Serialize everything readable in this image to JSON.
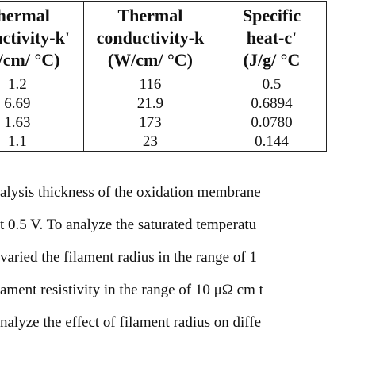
{
  "table": {
    "headers": [
      [
        "Thermal",
        "onductivity-k'",
        "(W/cm/ °C)"
      ],
      [
        "Thermal",
        "conductivity-k",
        "(W/cm/ °C)"
      ],
      [
        "Specific",
        "heat-c'",
        "(J/g/ °C"
      ]
    ],
    "rows": [
      [
        "1.2",
        "116",
        "0.5"
      ],
      [
        "6.69",
        "21.9",
        "0.6894"
      ],
      [
        "1.63",
        "173",
        "0.0780"
      ],
      [
        "1.1",
        "23",
        "0.144"
      ]
    ]
  },
  "paragraph": {
    "lines": [
      "alysis thickness of the oxidation membrane",
      "t 0.5 V. To analyze the saturated temperatu",
      "varied the filament radius in the range of 1",
      "ament resistivity in the range of 10 μΩ cm t",
      "nalyze the effect of filament radius on diffe"
    ]
  }
}
